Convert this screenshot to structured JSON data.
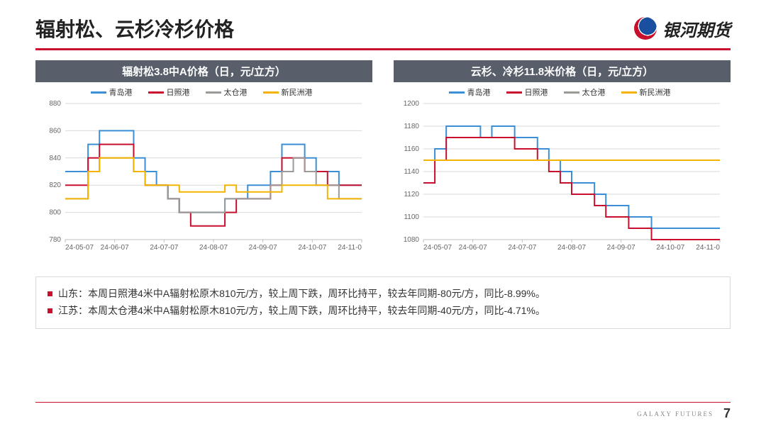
{
  "title": "辐射松、云杉冷杉价格",
  "brand": "银河期货",
  "footer_brand": "GALAXY FUTURES",
  "page_number": "7",
  "legend_series": [
    {
      "label": "青岛港",
      "color": "#3b8fd6"
    },
    {
      "label": "日照港",
      "color": "#c8102e"
    },
    {
      "label": "太仓港",
      "color": "#9a9a97"
    },
    {
      "label": "新民洲港",
      "color": "#f3b300"
    }
  ],
  "chart_left": {
    "type": "step-line",
    "title": "辐射松3.8中A价格（日，元/立方）",
    "ylim": [
      780,
      880
    ],
    "ytick_step": 20,
    "x_labels": [
      "24-05-07",
      "24-06-07",
      "24-07-07",
      "24-08-07",
      "24-09-07",
      "24-10-07",
      "24-11-0"
    ],
    "x_count": 27,
    "axis_color": "#bfbfbf",
    "grid_color": "#d9d9d9",
    "tick_fontsize": 10,
    "tick_color": "#666666",
    "line_width": 2,
    "background_color": "#ffffff",
    "series": [
      {
        "name": "青岛港",
        "color": "#3b8fd6",
        "values": [
          830,
          830,
          850,
          860,
          860,
          860,
          840,
          830,
          820,
          810,
          800,
          800,
          800,
          800,
          810,
          810,
          820,
          820,
          830,
          850,
          850,
          840,
          830,
          830,
          820,
          820,
          820
        ]
      },
      {
        "name": "日照港",
        "color": "#c8102e",
        "values": [
          820,
          820,
          840,
          850,
          850,
          850,
          830,
          820,
          820,
          810,
          800,
          790,
          790,
          790,
          800,
          810,
          810,
          810,
          820,
          840,
          840,
          830,
          830,
          820,
          820,
          820,
          820
        ]
      },
      {
        "name": "太仓港",
        "color": "#9a9a97",
        "values": [
          810,
          810,
          830,
          840,
          840,
          840,
          830,
          820,
          820,
          810,
          800,
          800,
          800,
          800,
          810,
          810,
          810,
          810,
          820,
          830,
          840,
          830,
          820,
          820,
          810,
          810,
          810
        ]
      },
      {
        "name": "新民洲港",
        "color": "#f3b300",
        "values": [
          810,
          810,
          830,
          840,
          840,
          840,
          830,
          820,
          820,
          820,
          815,
          815,
          815,
          815,
          820,
          815,
          815,
          815,
          815,
          820,
          820,
          820,
          820,
          810,
          810,
          810,
          810
        ]
      }
    ]
  },
  "chart_right": {
    "type": "step-line",
    "title": "云杉、冷杉11.8米价格（日，元/立方）",
    "ylim": [
      1080,
      1200
    ],
    "ytick_step": 20,
    "x_labels": [
      "24-05-07",
      "24-06-07",
      "24-07-07",
      "24-08-07",
      "24-09-07",
      "24-10-07",
      "24-11-0"
    ],
    "x_count": 27,
    "axis_color": "#bfbfbf",
    "grid_color": "#d9d9d9",
    "tick_fontsize": 10,
    "tick_color": "#666666",
    "line_width": 2,
    "background_color": "#ffffff",
    "series": [
      {
        "name": "青岛港",
        "color": "#3b8fd6",
        "values": [
          1150,
          1160,
          1180,
          1180,
          1180,
          1170,
          1180,
          1180,
          1170,
          1170,
          1160,
          1150,
          1140,
          1130,
          1130,
          1120,
          1110,
          1110,
          1100,
          1100,
          1090,
          1090,
          1090,
          1090,
          1090,
          1090,
          1090
        ]
      },
      {
        "name": "日照港",
        "color": "#c8102e",
        "values": [
          1130,
          1150,
          1170,
          1170,
          1170,
          1170,
          1170,
          1170,
          1160,
          1160,
          1150,
          1140,
          1130,
          1120,
          1120,
          1110,
          1100,
          1100,
          1090,
          1090,
          1080,
          1080,
          1080,
          1080,
          1080,
          1080,
          1080
        ]
      },
      {
        "name": "太仓港",
        "color": "#9a9a97",
        "values": [
          1150,
          1150,
          1150,
          1150,
          1150,
          1150,
          1150,
          1150,
          1150,
          1150,
          1150,
          1150,
          1150,
          1150,
          1150,
          1150,
          1150,
          1150,
          1150,
          1150,
          1150,
          1150,
          1150,
          1150,
          1150,
          1150,
          1150
        ]
      },
      {
        "name": "新民洲港",
        "color": "#f3b300",
        "values": [
          1150,
          1150,
          1150,
          1150,
          1150,
          1150,
          1150,
          1150,
          1150,
          1150,
          1150,
          1150,
          1150,
          1150,
          1150,
          1150,
          1150,
          1150,
          1150,
          1150,
          1150,
          1150,
          1150,
          1150,
          1150,
          1150,
          1150
        ]
      }
    ]
  },
  "notes": [
    "山东：本周日照港4米中A辐射松原木810元/方，较上周下跌，周环比持平，较去年同期-80元/方，同比-8.99%。",
    "江苏：本周太仓港4米中A辐射松原木810元/方，较上周下跌，周环比持平，较去年同期-40元/方，同比-4.71%。"
  ]
}
